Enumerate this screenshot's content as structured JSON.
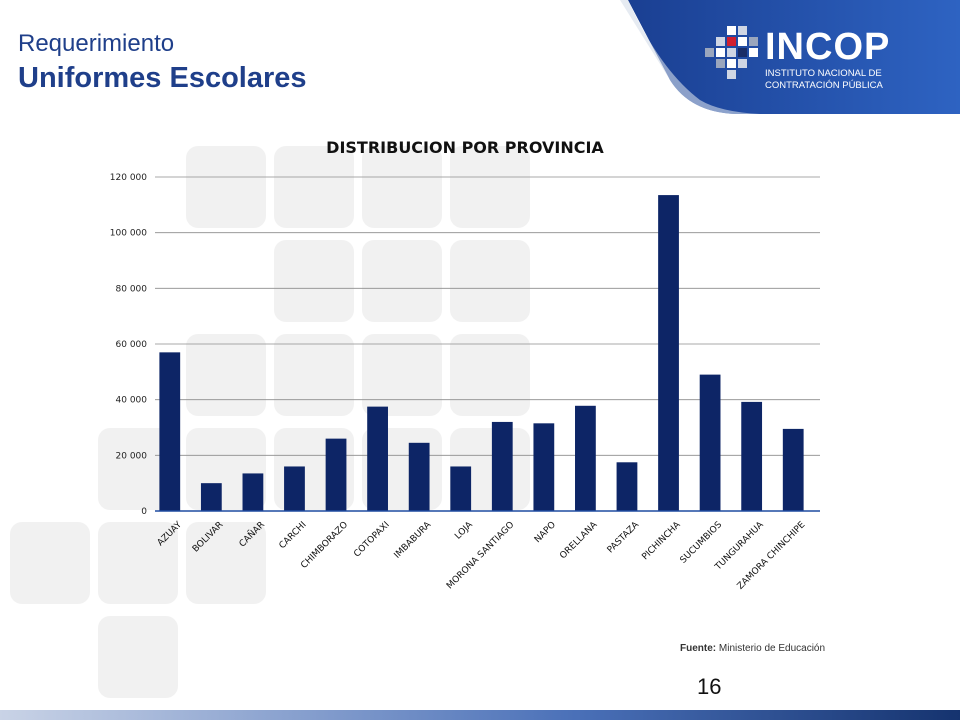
{
  "slide": {
    "subtitle": "Requerimiento",
    "title": "Uniformes Escolares",
    "page_number": "16",
    "source_label": "Fuente:",
    "source_text": "Ministerio de Educación"
  },
  "logo": {
    "name": "INCOP",
    "line1": "INSTITUTO NACIONAL DE",
    "line2": "CONTRATACIÓN PÚBLICA"
  },
  "colors": {
    "bar": "#0d2566",
    "brand_blue": "#1f4ba0",
    "title_blue": "#1f3f8a"
  },
  "chart_data": {
    "type": "bar",
    "title": "DISTRIBUCION POR PROVINCIA",
    "xlabel": "",
    "ylabel": "",
    "ylim": [
      0,
      120000
    ],
    "yticks": [
      0,
      20000,
      40000,
      60000,
      80000,
      100000,
      120000
    ],
    "ytick_labels": [
      "0",
      "20 000",
      "40 000",
      "60 000",
      "80 000",
      "100 000",
      "120 000"
    ],
    "grid": true,
    "categories": [
      "AZUAY",
      "BOLIVAR",
      "CAÑAR",
      "CARCHI",
      "CHIMBORAZO",
      "COTOPAXI",
      "IMBABURA",
      "LOJA",
      "MORONA SANTIAGO",
      "NAPO",
      "ORELLANA",
      "PASTAZA",
      "PICHINCHA",
      "SUCUMBIOS",
      "TUNGURAHUA",
      "ZAMORA CHINCHIPE"
    ],
    "values": [
      57000,
      10000,
      13500,
      16000,
      26000,
      37500,
      24500,
      16000,
      32000,
      31500,
      37800,
      17500,
      113500,
      49000,
      39200,
      29500
    ]
  }
}
